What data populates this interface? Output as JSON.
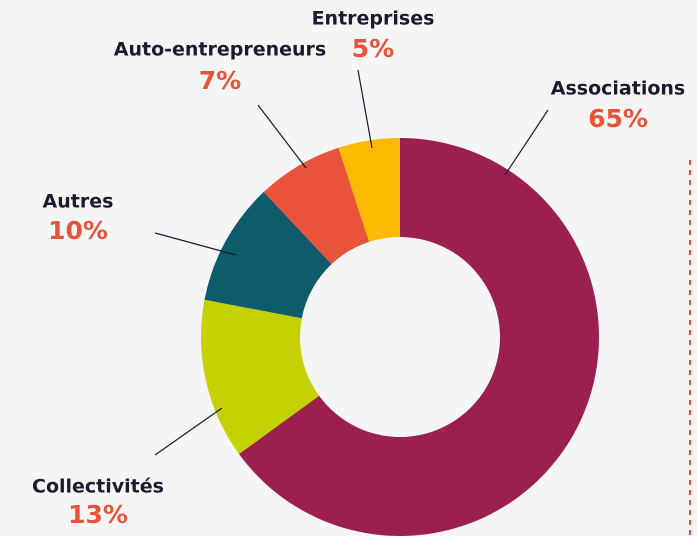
{
  "chart_data": {
    "type": "donut",
    "categories": [
      "Associations",
      "Collectivités",
      "Autres",
      "Auto-entrepreneurs",
      "Entreprises"
    ],
    "values": [
      65,
      13,
      10,
      7,
      5
    ],
    "value_labels": [
      "65%",
      "13%",
      "10%",
      "7%",
      "5%"
    ],
    "colors": [
      "#9b1f4f",
      "#c5d100",
      "#0e5b6b",
      "#e8533a",
      "#fbb900"
    ]
  }
}
